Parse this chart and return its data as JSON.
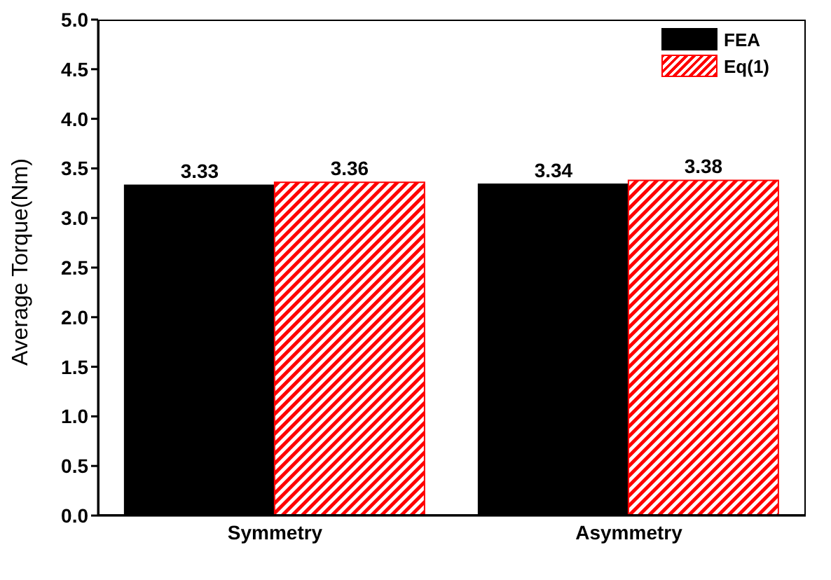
{
  "chart_data": {
    "type": "bar",
    "ylabel": "Average Torque(Nm)",
    "categories": [
      "Symmetry",
      "Asymmetry"
    ],
    "series": [
      {
        "name": "FEA",
        "color": "#000000",
        "values": [
          3.33,
          3.34
        ]
      },
      {
        "name": "Eq(1)",
        "color": "#ff0000",
        "values": [
          3.36,
          3.38
        ]
      }
    ],
    "ylim": [
      0,
      5
    ],
    "yticks": [
      {
        "value": 0,
        "label": "0.0"
      },
      {
        "value": 0.5,
        "label": "0.5"
      },
      {
        "value": 1,
        "label": "1.0"
      },
      {
        "value": 1.5,
        "label": "1.5"
      },
      {
        "value": 2,
        "label": "2.0"
      },
      {
        "value": 2.5,
        "label": "2.5"
      },
      {
        "value": 3,
        "label": "3.0"
      },
      {
        "value": 3.5,
        "label": "3.5"
      },
      {
        "value": 4,
        "label": "4.0"
      },
      {
        "value": 4.5,
        "label": "4.5"
      },
      {
        "value": 5,
        "label": "5.0"
      }
    ],
    "data_labels": true,
    "grid": false,
    "legend": "top right"
  }
}
